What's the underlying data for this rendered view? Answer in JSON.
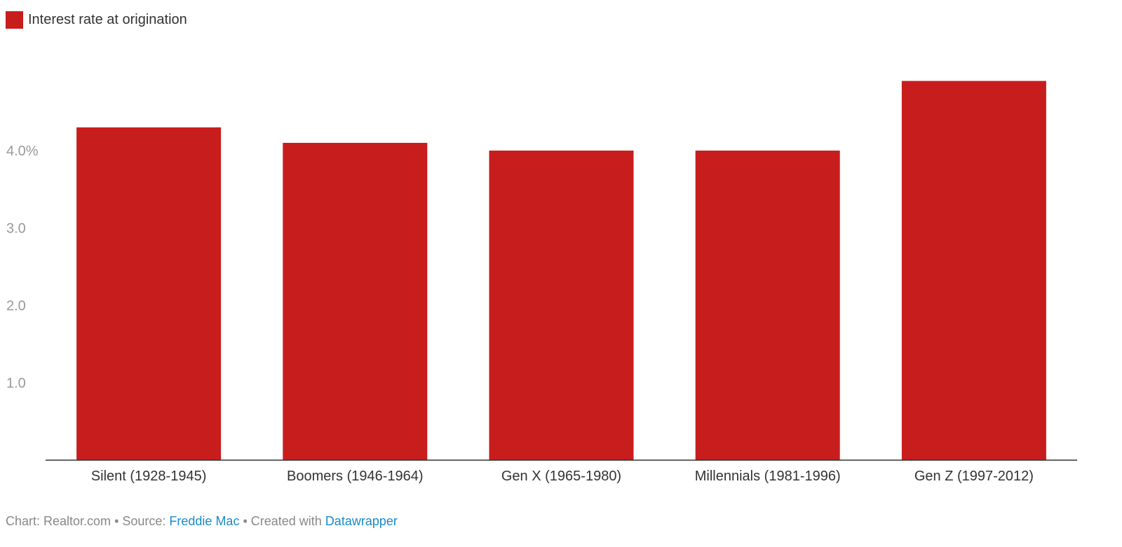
{
  "legend": {
    "label": "Interest rate at origination"
  },
  "colors": {
    "bar": "#c81d1d",
    "axis_text": "#999999",
    "category_text": "#333333",
    "baseline": "#333333",
    "link": "#1a8ac9"
  },
  "chart_data": {
    "type": "bar",
    "categories": [
      "Silent (1928-1945)",
      "Boomers (1946-1964)",
      "Gen X (1965-1980)",
      "Millennials (1981-1996)",
      "Gen Z (1997-2012)"
    ],
    "series": [
      {
        "name": "Interest rate at origination",
        "values": [
          4.3,
          4.1,
          4.0,
          4.0,
          4.9
        ]
      }
    ],
    "yticks": [
      1.0,
      2.0,
      3.0,
      4.0
    ],
    "ytick_labels": [
      "1.0",
      "2.0",
      "3.0",
      "4.0%"
    ],
    "ylim": [
      0,
      5.0
    ],
    "grid": false,
    "legend_position": "top-left"
  },
  "footer": {
    "chart_credit": "Chart: Realtor.com",
    "sep1": " • Source: ",
    "source": "Freddie Mac",
    "sep2": " • Created with ",
    "tool": "Datawrapper"
  }
}
